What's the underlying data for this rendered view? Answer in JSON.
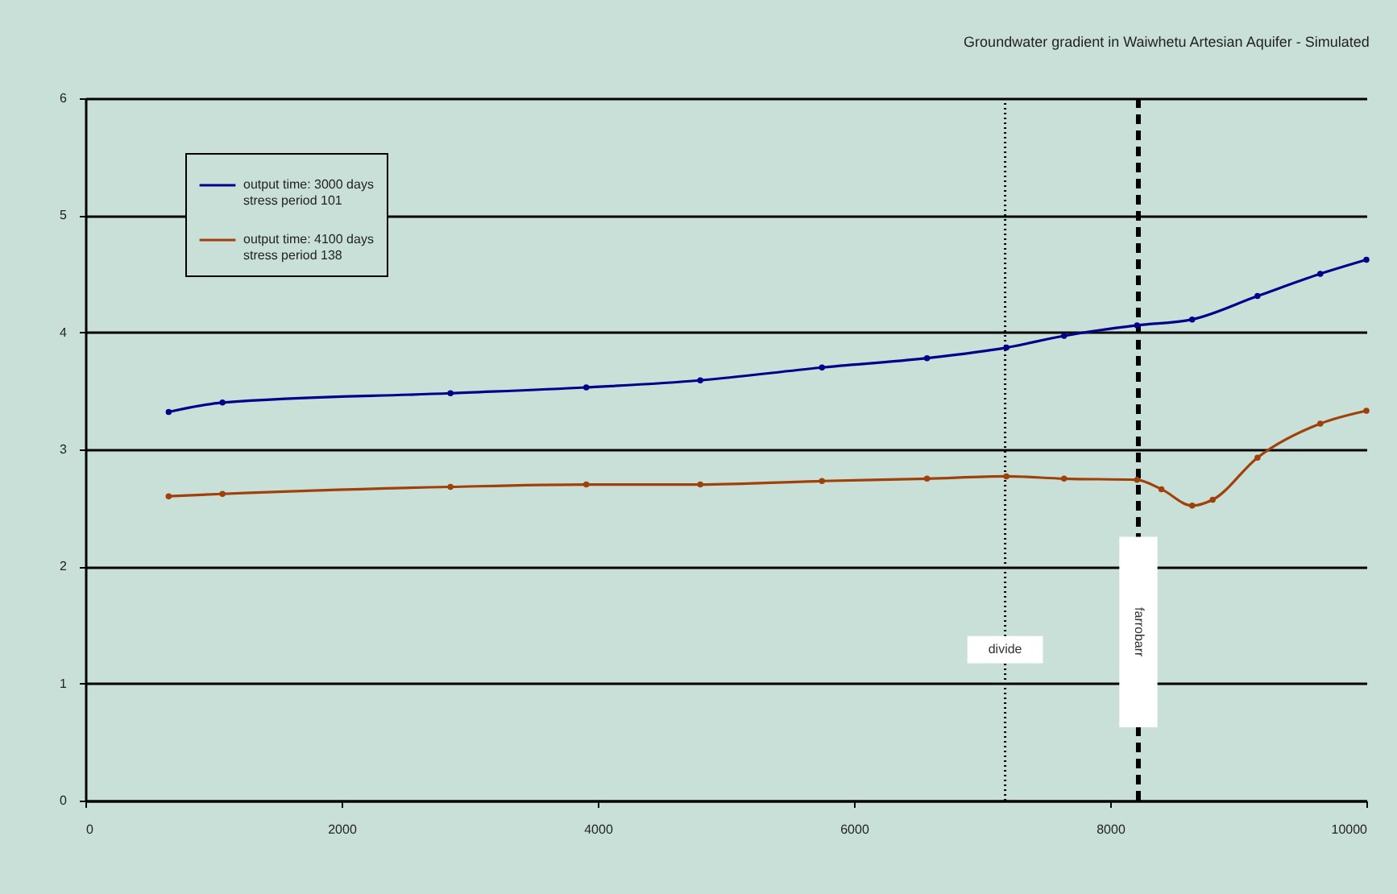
{
  "chart_data": {
    "type": "line",
    "title": "Groundwater gradient in Waiwhetu Artesian Aquifer - Simulated",
    "series": [
      {
        "name": "output time: 3000 days\nstress period 101",
        "color": "#00008b",
        "x": [
          650,
          1070,
          2850,
          3910,
          4800,
          5750,
          6570,
          7190,
          7640,
          8210,
          8640,
          9150,
          9640,
          10000
        ],
        "values": [
          3.32,
          3.4,
          3.48,
          3.53,
          3.59,
          3.7,
          3.78,
          3.87,
          3.97,
          4.06,
          4.11,
          4.31,
          4.5,
          4.62
        ]
      },
      {
        "name": "output time: 4100 days\nstress period 138",
        "color": "#a0400a",
        "x": [
          650,
          1070,
          2850,
          3910,
          4800,
          5750,
          6570,
          7190,
          7640,
          8210,
          8400,
          8640,
          8800,
          9150,
          9640,
          10000
        ],
        "values": [
          2.6,
          2.62,
          2.68,
          2.7,
          2.7,
          2.73,
          2.75,
          2.77,
          2.75,
          2.74,
          2.66,
          2.52,
          2.57,
          2.93,
          3.22,
          3.33
        ]
      }
    ],
    "xlim": [
      0,
      10000
    ],
    "xticks": [
      0,
      2000,
      4000,
      6000,
      8000,
      10000
    ],
    "ylim": [
      0,
      6
    ],
    "yticks": [
      0,
      1,
      2,
      3,
      4,
      5,
      6
    ],
    "grid": "y",
    "legend": "top left",
    "marker": "circle",
    "line_style": "solid",
    "ref_lines": [
      {
        "axis": "x",
        "value": 7180,
        "label": "divide",
        "line_style": "dotted",
        "color": "#000000"
      },
      {
        "axis": "x",
        "value": 8220,
        "label": "farrobarr",
        "line_style": "dashed",
        "color": "#000000"
      }
    ]
  }
}
